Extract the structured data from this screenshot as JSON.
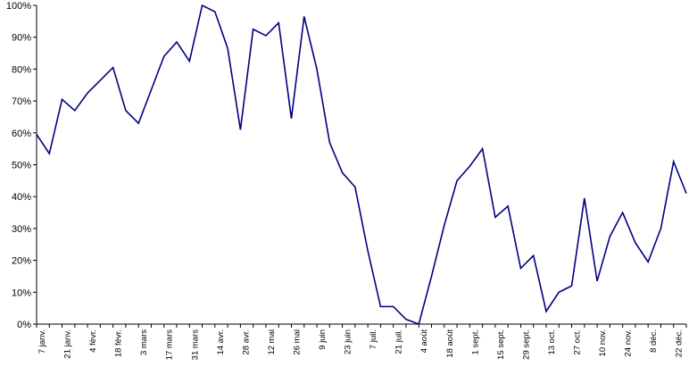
{
  "chart_data": {
    "type": "line",
    "title": "",
    "xlabel": "",
    "ylabel": "",
    "ylim": [
      0,
      100
    ],
    "y_tick_labels": [
      "0%",
      "10%",
      "20%",
      "30%",
      "40%",
      "50%",
      "60%",
      "70%",
      "80%",
      "90%",
      "100%"
    ],
    "grid": false,
    "legend": "none",
    "line_color": "#000080",
    "x_tick_labels": [
      "7 janv.",
      "21 janv.",
      "4 févr.",
      "18 févr.",
      "3 mars",
      "17 mars",
      "31 mars",
      "14 avr.",
      "28 avr.",
      "12 mai",
      "26 mai",
      "9 juin",
      "23 juin",
      "7 juil.",
      "21 juil.",
      "4 août",
      "18 août",
      "1 sept.",
      "15 sept.",
      "29 sept.",
      "13 oct.",
      "27 oct.",
      "10 nov.",
      "24 nov.",
      "8 déc.",
      "22 déc."
    ],
    "series": [
      {
        "values": [
          59.5,
          53.5,
          70.5,
          67,
          72.5,
          76.5,
          80.5,
          67,
          63,
          73.5,
          84,
          88.5,
          82.5,
          100,
          98,
          86.5,
          61,
          92.5,
          90.5,
          94.5,
          64.5,
          96.5,
          80,
          57,
          47.5,
          43,
          23,
          5.5,
          5.5,
          1.5,
          0,
          15,
          31,
          45,
          49.5,
          55,
          33.5,
          37,
          17.5,
          21.5,
          4,
          10,
          12,
          39.5,
          13.5,
          27.5,
          35,
          25.5,
          19.5,
          30,
          51,
          41
        ]
      }
    ]
  }
}
